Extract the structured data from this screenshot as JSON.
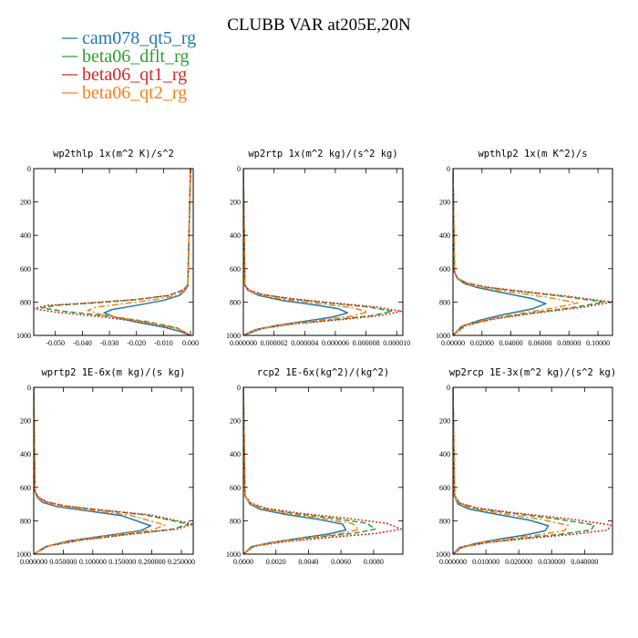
{
  "figure": {
    "title": "CLUBB VAR at205E,20N"
  },
  "legend": [
    {
      "name": "cam078_qt5_rg",
      "color": "#1f77b4"
    },
    {
      "name": "beta06_dflt_rg",
      "color": "#2ca02c"
    },
    {
      "name": "beta06_qt1_rg",
      "color": "#d62728"
    },
    {
      "name": "beta06_qt2_rg",
      "color": "#ff7f0e"
    }
  ],
  "chart_data": [
    {
      "type": "line",
      "title": "wp2thlp  1x(m^2 K)/s^2",
      "xlim": [
        -0.058,
        0.001
      ],
      "ylim": [
        0,
        1000
      ],
      "y_reversed": true,
      "xticks": [
        -0.05,
        -0.04,
        -0.03,
        -0.02,
        -0.01,
        0.0
      ],
      "xtick_labels": [
        "-0.050",
        "-0.040",
        "-0.030",
        "-0.020",
        "-0.010",
        "0.000"
      ],
      "yticks": [
        0,
        200,
        400,
        600,
        800,
        1000
      ],
      "ytick_labels": [
        "0",
        "200",
        "400",
        "600",
        "800",
        "1000"
      ],
      "series": [
        {
          "name": "cam078_qt5_rg",
          "color": "#1f77b4",
          "dash": "solid",
          "x": [
            0,
            -0.001,
            -0.002,
            -0.004,
            -0.01,
            -0.02,
            -0.029,
            -0.032,
            -0.028,
            -0.02,
            -0.01,
            -0.004,
            0
          ],
          "y": [
            0,
            700,
            730,
            760,
            790,
            820,
            845,
            865,
            890,
            920,
            950,
            975,
            1000
          ]
        },
        {
          "name": "beta06_dflt_rg",
          "color": "#2ca02c",
          "dash": "dashed",
          "x": [
            0,
            -0.001,
            -0.003,
            -0.008,
            -0.02,
            -0.035,
            -0.05,
            -0.055,
            -0.047,
            -0.03,
            -0.015,
            -0.005,
            0
          ],
          "y": [
            0,
            700,
            730,
            760,
            785,
            805,
            820,
            835,
            855,
            885,
            920,
            955,
            1000
          ]
        },
        {
          "name": "beta06_qt1_rg",
          "color": "#d62728",
          "dash": "dotted",
          "x": [
            0,
            -0.001,
            -0.003,
            -0.008,
            -0.02,
            -0.038,
            -0.053,
            -0.058,
            -0.05,
            -0.032,
            -0.016,
            -0.005,
            0
          ],
          "y": [
            0,
            700,
            730,
            760,
            785,
            805,
            820,
            840,
            860,
            890,
            925,
            958,
            1000
          ]
        },
        {
          "name": "beta06_qt2_rg",
          "color": "#ff7f0e",
          "dash": "dashdot",
          "x": [
            0,
            -0.001,
            -0.002,
            -0.005,
            -0.013,
            -0.025,
            -0.035,
            -0.038,
            -0.033,
            -0.022,
            -0.011,
            -0.004,
            0
          ],
          "y": [
            0,
            700,
            730,
            760,
            785,
            810,
            830,
            850,
            875,
            905,
            935,
            965,
            1000
          ]
        }
      ]
    },
    {
      "type": "line",
      "title": "wp2rtp  1x(m^2 kg)/(s^2 kg)",
      "xlim": [
        0,
        1.04e-05
      ],
      "ylim": [
        0,
        1000
      ],
      "y_reversed": true,
      "xticks": [
        0,
        2e-06,
        4e-06,
        6e-06,
        8e-06,
        1e-05
      ],
      "xtick_labels": [
        "0.000000",
        "0.000002",
        "0.000004",
        "0.000006",
        "0.000008",
        "0.000010"
      ],
      "yticks": [
        0,
        200,
        400,
        600,
        800,
        1000
      ],
      "ytick_labels": [
        "0",
        "200",
        "400",
        "600",
        "800",
        "1000"
      ],
      "series": [
        {
          "name": "cam078_qt5_rg",
          "color": "#1f77b4",
          "dash": "solid",
          "x": [
            0,
            1e-07,
            3e-07,
            1e-06,
            2.5e-06,
            4.5e-06,
            6.2e-06,
            6.8e-06,
            5.8e-06,
            4e-06,
            2.2e-06,
            8e-07,
            0
          ],
          "y": [
            0,
            700,
            730,
            760,
            790,
            815,
            840,
            865,
            890,
            915,
            940,
            965,
            1000
          ]
        },
        {
          "name": "beta06_dflt_rg",
          "color": "#2ca02c",
          "dash": "dashed",
          "x": [
            0,
            1e-07,
            4e-07,
            1.2e-06,
            3e-06,
            5.5e-06,
            8.2e-06,
            9.7e-06,
            8.5e-06,
            6e-06,
            3.2e-06,
            1.2e-06,
            0
          ],
          "y": [
            0,
            700,
            730,
            755,
            780,
            805,
            830,
            855,
            880,
            905,
            930,
            958,
            1000
          ]
        },
        {
          "name": "beta06_qt1_rg",
          "color": "#d62728",
          "dash": "dotted",
          "x": [
            0,
            1e-07,
            4e-07,
            1.3e-06,
            3.2e-06,
            5.8e-06,
            8.7e-06,
            1.03e-05,
            9e-06,
            6.4e-06,
            3.4e-06,
            1.3e-06,
            0
          ],
          "y": [
            0,
            700,
            730,
            755,
            780,
            805,
            830,
            855,
            880,
            905,
            930,
            958,
            1000
          ]
        },
        {
          "name": "beta06_qt2_rg",
          "color": "#ff7f0e",
          "dash": "dashdot",
          "x": [
            0,
            1e-07,
            3e-07,
            1.1e-06,
            2.7e-06,
            5e-06,
            7.2e-06,
            8.1e-06,
            7e-06,
            4.9e-06,
            2.7e-06,
            1e-06,
            0
          ],
          "y": [
            0,
            700,
            730,
            758,
            785,
            810,
            835,
            860,
            885,
            910,
            935,
            962,
            1000
          ]
        }
      ]
    },
    {
      "type": "line",
      "title": "wpthlp2  1x(m K^2)/s",
      "xlim": [
        0,
        0.11
      ],
      "ylim": [
        0,
        1000
      ],
      "y_reversed": true,
      "xticks": [
        0,
        0.02,
        0.04,
        0.06,
        0.08,
        0.1
      ],
      "xtick_labels": [
        "0.00000",
        "0.02000",
        "0.04000",
        "0.06000",
        "0.08000",
        "0.10000"
      ],
      "yticks": [
        0,
        200,
        400,
        600,
        800,
        1000
      ],
      "ytick_labels": [
        "0",
        "200",
        "400",
        "600",
        "800",
        "1000"
      ],
      "series": [
        {
          "name": "cam078_qt5_rg",
          "color": "#1f77b4",
          "dash": "solid",
          "x": [
            0,
            0.001,
            0.003,
            0.008,
            0.018,
            0.035,
            0.055,
            0.064,
            0.055,
            0.035,
            0.018,
            0.006,
            0
          ],
          "y": [
            0,
            620,
            660,
            690,
            715,
            745,
            780,
            810,
            840,
            875,
            910,
            945,
            1000
          ]
        },
        {
          "name": "beta06_dflt_rg",
          "color": "#2ca02c",
          "dash": "dashed",
          "x": [
            0,
            0.001,
            0.003,
            0.009,
            0.022,
            0.045,
            0.075,
            0.104,
            0.085,
            0.055,
            0.028,
            0.008,
            0
          ],
          "y": [
            0,
            620,
            655,
            685,
            710,
            735,
            765,
            800,
            830,
            865,
            900,
            940,
            1000
          ]
        },
        {
          "name": "beta06_qt1_rg",
          "color": "#d62728",
          "dash": "dotted",
          "x": [
            0,
            0.001,
            0.003,
            0.009,
            0.023,
            0.047,
            0.079,
            0.11,
            0.09,
            0.058,
            0.029,
            0.009,
            0
          ],
          "y": [
            0,
            620,
            655,
            685,
            710,
            735,
            765,
            800,
            830,
            865,
            900,
            940,
            1000
          ]
        },
        {
          "name": "beta06_qt2_rg",
          "color": "#ff7f0e",
          "dash": "dashdot",
          "x": [
            0,
            0.001,
            0.003,
            0.008,
            0.02,
            0.04,
            0.065,
            0.086,
            0.07,
            0.045,
            0.023,
            0.007,
            0
          ],
          "y": [
            0,
            620,
            657,
            688,
            712,
            740,
            772,
            805,
            835,
            870,
            905,
            942,
            1000
          ]
        }
      ]
    },
    {
      "type": "line",
      "title": "wprtp2  1E-6x(m kg)/(s kg)",
      "xlim": [
        0,
        0.27
      ],
      "ylim": [
        0,
        1000
      ],
      "y_reversed": true,
      "xticks": [
        0,
        0.05,
        0.1,
        0.15,
        0.2,
        0.25
      ],
      "xtick_labels": [
        "0.000000",
        "0.050000",
        "0.100000",
        "0.150000",
        "0.200000",
        "0.250000"
      ],
      "yticks": [
        0,
        200,
        400,
        600,
        800,
        1000
      ],
      "ytick_labels": [
        "0",
        "200",
        "400",
        "600",
        "800",
        "1000"
      ],
      "series": [
        {
          "name": "cam078_qt5_rg",
          "color": "#1f77b4",
          "dash": "solid",
          "x": [
            0,
            0.002,
            0.006,
            0.015,
            0.04,
            0.09,
            0.15,
            0.198,
            0.18,
            0.12,
            0.06,
            0.02,
            0
          ],
          "y": [
            0,
            620,
            660,
            690,
            715,
            740,
            770,
            830,
            860,
            890,
            920,
            955,
            1000
          ]
        },
        {
          "name": "beta06_dflt_rg",
          "color": "#2ca02c",
          "dash": "dashed",
          "x": [
            0,
            0.002,
            0.007,
            0.02,
            0.05,
            0.11,
            0.19,
            0.262,
            0.235,
            0.16,
            0.08,
            0.025,
            0
          ],
          "y": [
            0,
            620,
            655,
            685,
            710,
            735,
            765,
            820,
            850,
            880,
            915,
            950,
            1000
          ]
        },
        {
          "name": "beta06_qt1_rg",
          "color": "#d62728",
          "dash": "dotted",
          "x": [
            0,
            0.002,
            0.007,
            0.021,
            0.052,
            0.115,
            0.198,
            0.27,
            0.242,
            0.165,
            0.083,
            0.026,
            0
          ],
          "y": [
            0,
            620,
            655,
            685,
            710,
            735,
            765,
            820,
            850,
            880,
            915,
            950,
            1000
          ]
        },
        {
          "name": "beta06_qt2_rg",
          "color": "#ff7f0e",
          "dash": "dashdot",
          "x": [
            0,
            0.002,
            0.006,
            0.017,
            0.044,
            0.098,
            0.165,
            0.222,
            0.2,
            0.135,
            0.068,
            0.022,
            0
          ],
          "y": [
            0,
            620,
            657,
            688,
            712,
            738,
            768,
            825,
            855,
            885,
            918,
            952,
            1000
          ]
        }
      ]
    },
    {
      "type": "line",
      "title": "rcp2  1E-6x(kg^2)/(kg^2)",
      "xlim": [
        0,
        0.0098
      ],
      "ylim": [
        0,
        1000
      ],
      "y_reversed": true,
      "xticks": [
        0,
        0.002,
        0.004,
        0.006,
        0.008
      ],
      "xtick_labels": [
        "0.0000",
        "0.0020",
        "0.0040",
        "0.0060",
        "0.0080"
      ],
      "yticks": [
        0,
        200,
        400,
        600,
        800,
        1000
      ],
      "ytick_labels": [
        "0",
        "200",
        "400",
        "600",
        "800",
        "1000"
      ],
      "series": [
        {
          "name": "cam078_qt5_rg",
          "color": "#1f77b4",
          "dash": "solid",
          "x": [
            0,
            0.0001,
            0.0004,
            0.001,
            0.0025,
            0.0045,
            0.0061,
            0.0063,
            0.0052,
            0.0034,
            0.0017,
            0.0005,
            0
          ],
          "y": [
            0,
            650,
            700,
            730,
            760,
            790,
            820,
            855,
            880,
            905,
            930,
            955,
            1000
          ]
        },
        {
          "name": "beta06_dflt_rg",
          "color": "#2ca02c",
          "dash": "dashed",
          "x": [
            0,
            0.0001,
            0.0004,
            0.0012,
            0.003,
            0.0055,
            0.0076,
            0.0081,
            0.0068,
            0.0044,
            0.0022,
            0.0006,
            0
          ],
          "y": [
            0,
            650,
            695,
            725,
            755,
            785,
            815,
            850,
            875,
            900,
            925,
            952,
            1000
          ]
        },
        {
          "name": "beta06_qt1_rg",
          "color": "#d62728",
          "dash": "dotted",
          "x": [
            0,
            0.0001,
            0.0005,
            0.0014,
            0.0035,
            0.0064,
            0.0088,
            0.0097,
            0.0082,
            0.0053,
            0.0026,
            0.0007,
            0
          ],
          "y": [
            0,
            650,
            695,
            725,
            755,
            785,
            815,
            850,
            875,
            900,
            925,
            952,
            1000
          ]
        },
        {
          "name": "beta06_qt2_rg",
          "color": "#ff7f0e",
          "dash": "dashdot",
          "x": [
            0,
            0.0001,
            0.0004,
            0.0011,
            0.0027,
            0.0049,
            0.0067,
            0.0071,
            0.006,
            0.0039,
            0.002,
            0.0006,
            0
          ],
          "y": [
            0,
            650,
            697,
            727,
            757,
            787,
            817,
            852,
            877,
            902,
            927,
            953,
            1000
          ]
        }
      ]
    },
    {
      "type": "line",
      "title": "wp2rcp  1E-3x(m^2 kg)/(s^2 kg)",
      "xlim": [
        0,
        0.0485
      ],
      "ylim": [
        0,
        1000
      ],
      "y_reversed": true,
      "xticks": [
        0,
        0.01,
        0.02,
        0.03,
        0.04
      ],
      "xtick_labels": [
        "0.000000",
        "0.010000",
        "0.020000",
        "0.030000",
        "0.040000"
      ],
      "yticks": [
        0,
        200,
        400,
        600,
        800,
        1000
      ],
      "ytick_labels": [
        "0",
        "200",
        "400",
        "600",
        "800",
        "1000"
      ],
      "series": [
        {
          "name": "cam078_qt5_rg",
          "color": "#1f77b4",
          "dash": "solid",
          "x": [
            0,
            0.0004,
            0.0015,
            0.005,
            0.013,
            0.023,
            0.029,
            0.028,
            0.022,
            0.014,
            0.007,
            0.002,
            0
          ],
          "y": [
            0,
            650,
            700,
            730,
            760,
            795,
            830,
            860,
            885,
            910,
            935,
            960,
            1000
          ]
        },
        {
          "name": "beta06_dflt_rg",
          "color": "#2ca02c",
          "dash": "dashed",
          "x": [
            0,
            0.0005,
            0.002,
            0.007,
            0.018,
            0.032,
            0.043,
            0.042,
            0.033,
            0.021,
            0.01,
            0.003,
            0
          ],
          "y": [
            0,
            650,
            695,
            725,
            755,
            790,
            825,
            855,
            880,
            905,
            930,
            957,
            1000
          ]
        },
        {
          "name": "beta06_qt1_rg",
          "color": "#d62728",
          "dash": "dotted",
          "x": [
            0,
            0.0005,
            0.0022,
            0.0078,
            0.02,
            0.036,
            0.048,
            0.047,
            0.037,
            0.023,
            0.011,
            0.003,
            0
          ],
          "y": [
            0,
            650,
            695,
            725,
            755,
            790,
            825,
            855,
            880,
            905,
            930,
            957,
            1000
          ]
        },
        {
          "name": "beta06_qt2_rg",
          "color": "#ff7f0e",
          "dash": "dashdot",
          "x": [
            0,
            0.0004,
            0.0017,
            0.006,
            0.015,
            0.027,
            0.035,
            0.034,
            0.027,
            0.017,
            0.008,
            0.0025,
            0
          ],
          "y": [
            0,
            650,
            697,
            727,
            757,
            792,
            827,
            857,
            882,
            907,
            932,
            958,
            1000
          ]
        }
      ]
    }
  ]
}
